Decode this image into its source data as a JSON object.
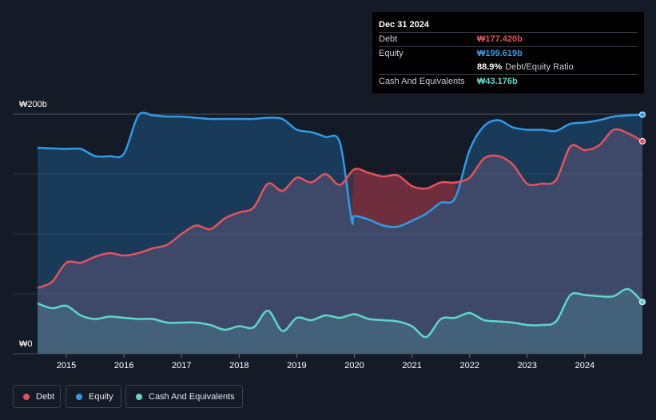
{
  "tooltip": {
    "date": "Dec 31 2024",
    "rows": [
      {
        "label": "Debt",
        "value": "₩177.420b",
        "color": "#e5515c"
      },
      {
        "label": "Equity",
        "value": "₩199.619b",
        "color": "#2f9be8"
      },
      {
        "label": "",
        "value": "88.9%",
        "suffix": "Debt/Equity Ratio",
        "color": "#ffffff"
      },
      {
        "label": "Cash And Equivalents",
        "value": "₩43.176b",
        "color": "#5fd6c8"
      }
    ]
  },
  "legend": [
    {
      "label": "Debt",
      "color": "#e5515c"
    },
    {
      "label": "Equity",
      "color": "#2f9be8"
    },
    {
      "label": "Cash And Equivalents",
      "color": "#5fd6c8"
    }
  ],
  "chart_data": {
    "type": "area",
    "ylim": [
      0,
      200
    ],
    "xlim": [
      2014.5,
      2025.0
    ],
    "y_tick_labels": [
      {
        "value": 200,
        "label": "₩200b"
      },
      {
        "value": 0,
        "label": "₩0"
      }
    ],
    "gridlines_y": [
      0,
      50,
      100,
      150,
      200
    ],
    "x_ticks": [
      2015,
      2016,
      2017,
      2018,
      2019,
      2020,
      2021,
      2022,
      2023,
      2024
    ],
    "x_tick_labels": [
      "2015",
      "2016",
      "2017",
      "2018",
      "2019",
      "2020",
      "2021",
      "2022",
      "2023",
      "2024"
    ],
    "series": [
      {
        "name": "Equity",
        "color": "#2f9be8",
        "points": [
          [
            2014.5,
            172
          ],
          [
            2015.0,
            171
          ],
          [
            2015.25,
            171
          ],
          [
            2015.5,
            165
          ],
          [
            2015.75,
            165
          ],
          [
            2016.0,
            167
          ],
          [
            2016.25,
            199
          ],
          [
            2016.5,
            199
          ],
          [
            2016.75,
            198
          ],
          [
            2017.0,
            198
          ],
          [
            2017.25,
            197
          ],
          [
            2017.5,
            196
          ],
          [
            2017.75,
            196
          ],
          [
            2018.0,
            196
          ],
          [
            2018.25,
            196
          ],
          [
            2018.5,
            197
          ],
          [
            2018.75,
            196
          ],
          [
            2019.0,
            187
          ],
          [
            2019.25,
            185
          ],
          [
            2019.5,
            181
          ],
          [
            2019.75,
            176
          ],
          [
            2019.95,
            112
          ],
          [
            2020.0,
            115
          ],
          [
            2020.25,
            112
          ],
          [
            2020.5,
            107
          ],
          [
            2020.75,
            106
          ],
          [
            2021.0,
            111
          ],
          [
            2021.25,
            117
          ],
          [
            2021.5,
            126
          ],
          [
            2021.75,
            130
          ],
          [
            2022.0,
            170
          ],
          [
            2022.25,
            190
          ],
          [
            2022.5,
            195
          ],
          [
            2022.75,
            189
          ],
          [
            2023.0,
            187
          ],
          [
            2023.25,
            187
          ],
          [
            2023.5,
            186
          ],
          [
            2023.75,
            192
          ],
          [
            2024.0,
            193
          ],
          [
            2024.25,
            195
          ],
          [
            2024.5,
            198
          ],
          [
            2024.75,
            199
          ],
          [
            2025.0,
            199.6
          ]
        ]
      },
      {
        "name": "Debt",
        "color": "#e5515c",
        "points": [
          [
            2014.5,
            55
          ],
          [
            2014.75,
            60
          ],
          [
            2015.0,
            76
          ],
          [
            2015.25,
            76
          ],
          [
            2015.5,
            81
          ],
          [
            2015.75,
            84
          ],
          [
            2016.0,
            82
          ],
          [
            2016.25,
            84
          ],
          [
            2016.5,
            88
          ],
          [
            2016.75,
            91
          ],
          [
            2017.0,
            100
          ],
          [
            2017.25,
            107
          ],
          [
            2017.5,
            104
          ],
          [
            2017.75,
            113
          ],
          [
            2018.0,
            118
          ],
          [
            2018.25,
            122
          ],
          [
            2018.5,
            142
          ],
          [
            2018.75,
            136
          ],
          [
            2019.0,
            147
          ],
          [
            2019.25,
            143
          ],
          [
            2019.5,
            150
          ],
          [
            2019.75,
            141
          ],
          [
            2020.0,
            154
          ],
          [
            2020.25,
            151
          ],
          [
            2020.5,
            148
          ],
          [
            2020.75,
            149
          ],
          [
            2021.0,
            140
          ],
          [
            2021.25,
            138
          ],
          [
            2021.5,
            143
          ],
          [
            2021.75,
            143
          ],
          [
            2022.0,
            147
          ],
          [
            2022.25,
            163
          ],
          [
            2022.5,
            165
          ],
          [
            2022.75,
            158
          ],
          [
            2023.0,
            142
          ],
          [
            2023.25,
            142
          ],
          [
            2023.5,
            145
          ],
          [
            2023.75,
            173
          ],
          [
            2024.0,
            170
          ],
          [
            2024.25,
            174
          ],
          [
            2024.5,
            187
          ],
          [
            2024.75,
            184
          ],
          [
            2025.0,
            177.4
          ]
        ]
      },
      {
        "name": "Cash And Equivalents",
        "color": "#5fd6c8",
        "points": [
          [
            2014.5,
            42
          ],
          [
            2014.75,
            38
          ],
          [
            2015.0,
            40
          ],
          [
            2015.25,
            32
          ],
          [
            2015.5,
            29
          ],
          [
            2015.75,
            31
          ],
          [
            2016.0,
            30
          ],
          [
            2016.25,
            29
          ],
          [
            2016.5,
            29
          ],
          [
            2016.75,
            26
          ],
          [
            2017.0,
            26
          ],
          [
            2017.25,
            26
          ],
          [
            2017.5,
            24
          ],
          [
            2017.75,
            20
          ],
          [
            2018.0,
            23
          ],
          [
            2018.25,
            22
          ],
          [
            2018.5,
            36
          ],
          [
            2018.75,
            19
          ],
          [
            2019.0,
            30
          ],
          [
            2019.25,
            28
          ],
          [
            2019.5,
            32
          ],
          [
            2019.75,
            30
          ],
          [
            2020.0,
            33
          ],
          [
            2020.25,
            29
          ],
          [
            2020.5,
            28
          ],
          [
            2020.75,
            27
          ],
          [
            2021.0,
            23
          ],
          [
            2021.25,
            14
          ],
          [
            2021.5,
            29
          ],
          [
            2021.75,
            30
          ],
          [
            2022.0,
            34
          ],
          [
            2022.25,
            28
          ],
          [
            2022.5,
            27
          ],
          [
            2022.75,
            26
          ],
          [
            2023.0,
            24
          ],
          [
            2023.25,
            24
          ],
          [
            2023.5,
            27
          ],
          [
            2023.75,
            49
          ],
          [
            2024.0,
            49
          ],
          [
            2024.25,
            48
          ],
          [
            2024.5,
            48
          ],
          [
            2024.75,
            54
          ],
          [
            2025.0,
            43.2
          ]
        ]
      }
    ]
  }
}
